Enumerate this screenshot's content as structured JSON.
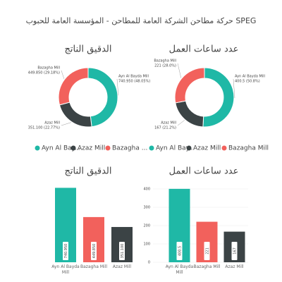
{
  "title": "حركة مطاحن الشركة العامة للمطاحن - المؤسسة العامة للحبوب SPEG",
  "chart_data": [
    {
      "type": "pie",
      "title": "الدقيق الناتج",
      "categories": [
        "Ayn Al Bayda Mill",
        "Azaz Mill",
        "Bazagha Mill"
      ],
      "values": [
        740.95,
        351.1,
        449.85
      ],
      "value_labels": [
        "740.950 (48.05%)",
        "351.100 (22.77%)",
        "449.850 (29.18%)"
      ],
      "colors": [
        "#1fb8a6",
        "#3b4345",
        "#f2615c"
      ],
      "legend": [
        "Ayn Al Bay...",
        "Azaz Mill",
        "Bazagha ..."
      ]
    },
    {
      "type": "pie",
      "title": "عدد ساعات العمل",
      "categories": [
        "Ayn Al Bayda Mill",
        "Azaz Mill",
        "Bazagha Mill"
      ],
      "values": [
        400.5,
        167,
        221
      ],
      "value_labels": [
        "400.5 (50.8%)",
        "167 (21.2%)",
        "221 (28.0%)"
      ],
      "colors": [
        "#1fb8a6",
        "#3b4345",
        "#f2615c"
      ],
      "legend": [
        "Ayn Al Bay...",
        "Azaz Mill",
        "Bazagha Mill"
      ]
    },
    {
      "type": "bar",
      "title": "الدقيق الناتج",
      "categories": [
        "Ayn Al Bayda Mill",
        "Bazagha Mill",
        "Azaz Mill"
      ],
      "values": [
        740.95,
        449.85,
        351.1
      ],
      "value_labels": [
        "740.950",
        "449.850",
        "351.100"
      ],
      "colors": [
        "#1fb8a6",
        "#f2615c",
        "#3b4345"
      ],
      "ylim": [
        0,
        800
      ]
    },
    {
      "type": "bar",
      "title": "عدد ساعات العمل",
      "categories": [
        "Ayn Al Bayda Mill",
        "Bazagha Mill",
        "Azaz Mill"
      ],
      "values": [
        400.5,
        221,
        167
      ],
      "colors": [
        "#1fb8a6",
        "#f2615c",
        "#3b4345"
      ],
      "ylim": [
        0,
        400
      ],
      "yticks": [
        0,
        100,
        200,
        300,
        400
      ],
      "grid": true
    }
  ]
}
